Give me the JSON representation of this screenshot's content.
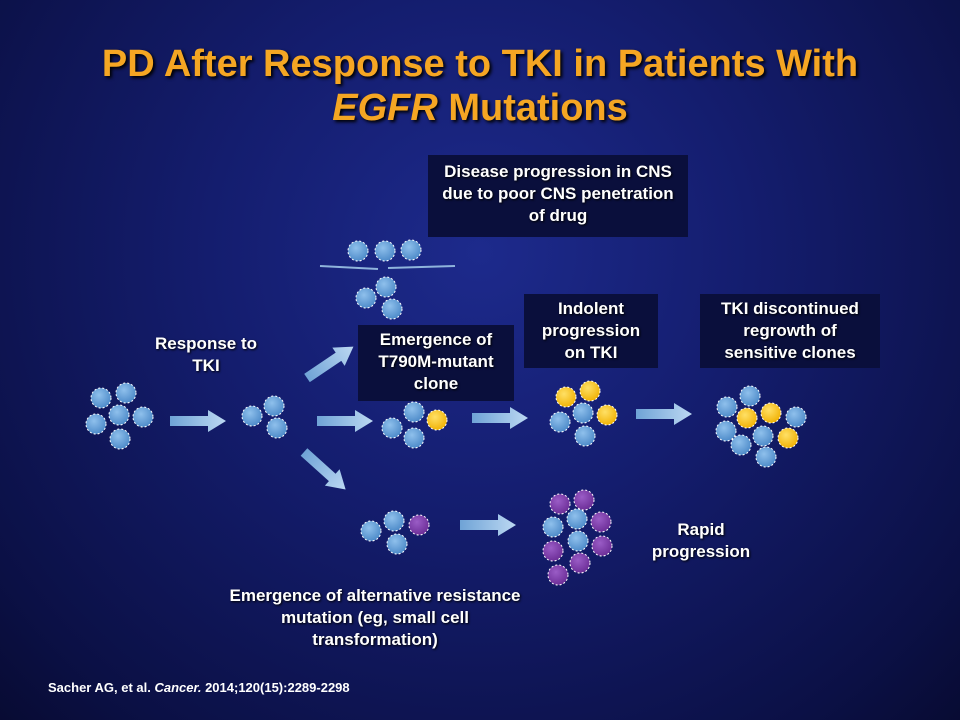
{
  "title": {
    "line1": "PD After Response to TKI in Patients With",
    "line2_italic": "EGFR",
    "line2_rest": " Mutations"
  },
  "labels": {
    "response": "Response to TKI",
    "cns": "Disease progression in CNS due to poor CNS penetration of drug",
    "t790m": "Emergence of T790M-mutant clone",
    "indolent": "Indolent progression on TKI",
    "tki_discontinued": "TKI discontinued regrowth of sensitive clones",
    "rapid": "Rapid progression",
    "alternative": "Emergence of alternative resistance mutation (eg, small cell transformation)"
  },
  "citation": {
    "authors": "Sacher AG, et al.",
    "journal": "Cancer.",
    "details": "2014;120(15):2289-2298"
  },
  "colors": {
    "title": "#f5a623",
    "cell_blue": "#5b9bd5",
    "cell_yellow": "#ffc000",
    "cell_purple": "#7030a0",
    "arrow": "#9dc3e6",
    "background": "#141d6e"
  }
}
